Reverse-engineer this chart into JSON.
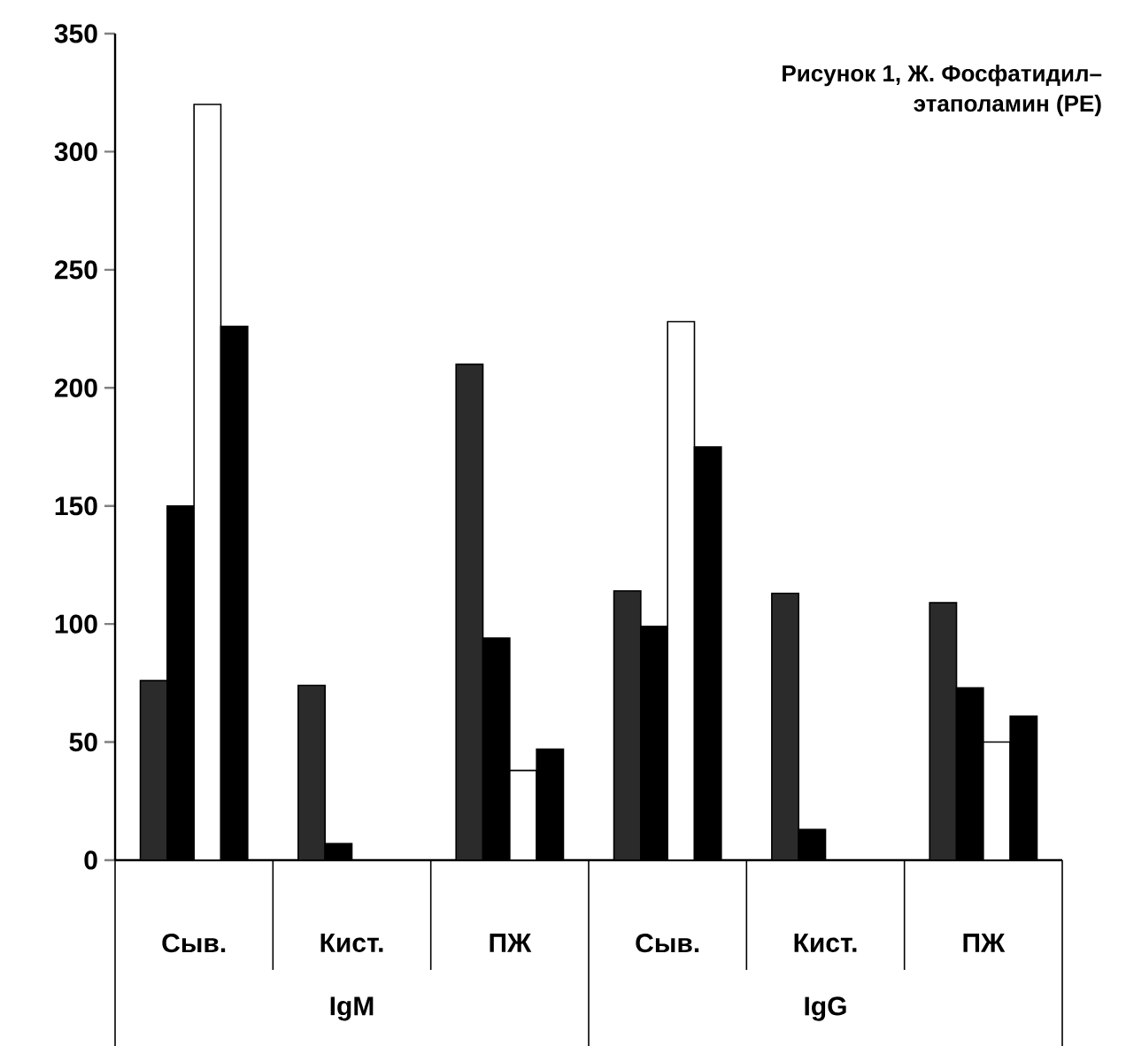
{
  "chart_data": {
    "type": "bar",
    "title": "Рисунок 1, Ж. Фосфатидил–",
    "subtitle": "этаполамин (PE)",
    "categories": [
      "Сыв.",
      "Кист.",
      "ПЖ",
      "Сыв.",
      "Кист.",
      "ПЖ"
    ],
    "series": [
      {
        "color": "#2b2b2b",
        "values": [
          76,
          74,
          210,
          114,
          113,
          109
        ]
      },
      {
        "color": "#000000",
        "values": [
          150,
          7,
          94,
          99,
          13,
          73
        ]
      },
      {
        "color": "#ffffff",
        "values": [
          320,
          null,
          38,
          228,
          null,
          50
        ]
      },
      {
        "color": "#000000",
        "values": [
          226,
          null,
          47,
          175,
          null,
          61
        ]
      }
    ],
    "annotations": [
      "IgM",
      "IgG"
    ],
    "ylim": [
      0,
      350
    ],
    "yticks": [
      0,
      50,
      100,
      150,
      200,
      250,
      300,
      350
    ],
    "grid": false
  }
}
